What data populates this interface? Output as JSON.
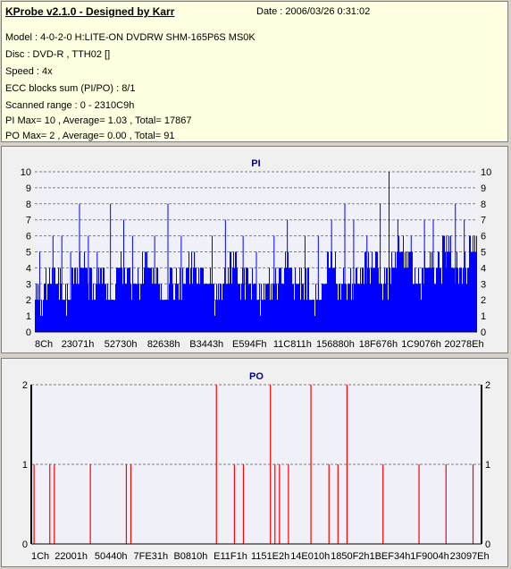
{
  "info": {
    "title": "KProbe v2.1.0 - Designed by Karr",
    "date": "Date : 2006/03/26 0:31:02",
    "model": "Model : 4-0-2-0 H:LITE-ON DVDRW SHM-165P6S MS0K",
    "disc": "Disc : DVD-R , TTH02 []",
    "speed": "Speed : 4x",
    "ecc": "ECC blocks sum (PI/PO) : 8/1",
    "range": "Scanned range : 0 - 2310C9h",
    "pi_stats": "PI Max= 10 , Average= 1.03 , Total= 17867",
    "po_stats": "PO Max= 2 , Average= 0.00 , Total= 91"
  },
  "colors": {
    "pi_bar": "#0000ff",
    "po_bar": "#ff0000",
    "plot_bg": "#f0f0f8",
    "grid": "#808080"
  },
  "chart_data": [
    {
      "type": "bar",
      "title": "PI",
      "ylim": [
        0,
        10
      ],
      "yticks": [
        0,
        1,
        2,
        3,
        4,
        5,
        6,
        7,
        8,
        9,
        10
      ],
      "xticks": [
        "8Ch",
        "23071h",
        "52730h",
        "82638h",
        "B3443h",
        "E594Fh",
        "11C811h",
        "156880h",
        "18F676h",
        "1C9076h",
        "20278Eh"
      ],
      "grid": true,
      "baseline": [
        2,
        3,
        3,
        2,
        3,
        4,
        3,
        3,
        2,
        4,
        3,
        3,
        4,
        3,
        2,
        3,
        3,
        4,
        3,
        3,
        2,
        3,
        4,
        3,
        3,
        2,
        3,
        3,
        4,
        3,
        3,
        2,
        3,
        4,
        3,
        3,
        3,
        4,
        4,
        3,
        4,
        5,
        4,
        3,
        4,
        4,
        5,
        4,
        4,
        5
      ],
      "spikes": [
        [
          0.01,
          5
        ],
        [
          0.04,
          6
        ],
        [
          0.06,
          6
        ],
        [
          0.08,
          5
        ],
        [
          0.1,
          8
        ],
        [
          0.12,
          6
        ],
        [
          0.14,
          5
        ],
        [
          0.17,
          8
        ],
        [
          0.2,
          7
        ],
        [
          0.22,
          6
        ],
        [
          0.25,
          5
        ],
        [
          0.27,
          6
        ],
        [
          0.3,
          8
        ],
        [
          0.33,
          6
        ],
        [
          0.36,
          5
        ],
        [
          0.4,
          6
        ],
        [
          0.43,
          7
        ],
        [
          0.47,
          6
        ],
        [
          0.5,
          5
        ],
        [
          0.54,
          6
        ],
        [
          0.57,
          7
        ],
        [
          0.61,
          6
        ],
        [
          0.64,
          6
        ],
        [
          0.67,
          7
        ],
        [
          0.7,
          8
        ],
        [
          0.72,
          7
        ],
        [
          0.75,
          6
        ],
        [
          0.78,
          8
        ],
        [
          0.8,
          10
        ],
        [
          0.82,
          7
        ],
        [
          0.85,
          6
        ],
        [
          0.88,
          7
        ],
        [
          0.9,
          7
        ],
        [
          0.93,
          6
        ],
        [
          0.95,
          8
        ],
        [
          0.97,
          7
        ],
        [
          0.99,
          6
        ]
      ]
    },
    {
      "type": "bar",
      "title": "PO",
      "ylim": [
        0,
        2
      ],
      "yticks": [
        0,
        1,
        2
      ],
      "xticks": [
        "1Ch",
        "22001h",
        "50440h",
        "7FE31h",
        "B0810h",
        "E11F1h",
        "1151E2h",
        "14E010h",
        "1850F2h",
        "1BEF34h",
        "1F9004h",
        "23097Eh"
      ],
      "grid": true,
      "x": [
        0.005,
        0.04,
        0.05,
        0.13,
        0.21,
        0.22,
        0.41,
        0.45,
        0.47,
        0.53,
        0.54,
        0.55,
        0.57,
        0.62,
        0.66,
        0.68,
        0.7,
        0.78,
        0.86,
        0.92,
        0.98
      ],
      "values": [
        1,
        1,
        1,
        1,
        1,
        1,
        2,
        1,
        1,
        2,
        1,
        1,
        1,
        2,
        1,
        1,
        2,
        1,
        1,
        1,
        1
      ]
    }
  ]
}
